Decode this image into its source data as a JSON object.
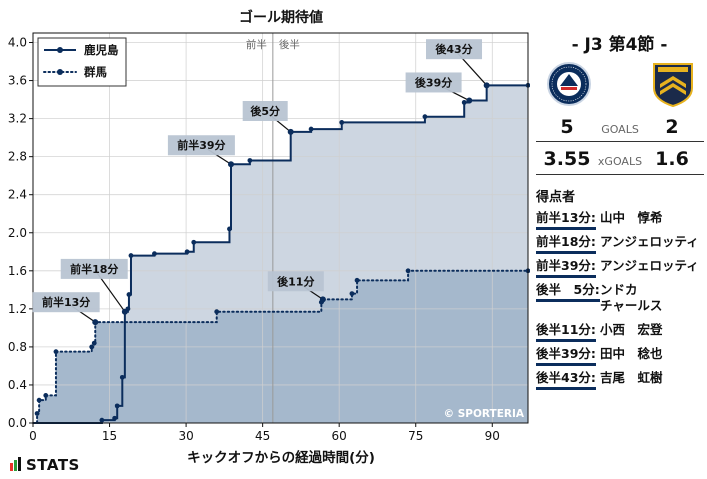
{
  "chart_data": {
    "type": "line",
    "title": "ゴール期待値",
    "xlabel": "キックオフからの経過時間(分)",
    "ylabel": "",
    "xlim": [
      0,
      97
    ],
    "ylim": [
      0,
      4.1
    ],
    "xticks": [
      0,
      15,
      30,
      45,
      60,
      75,
      90
    ],
    "yticks": [
      0.0,
      0.4,
      0.8,
      1.2,
      1.6,
      2.0,
      2.4,
      2.8,
      3.2,
      3.6,
      4.0
    ],
    "grid": true,
    "legend": "top-left",
    "halftime_minute": 47,
    "halftime_labels": [
      "前半",
      "後半"
    ],
    "watermark": "© SPORTERIA",
    "series": [
      {
        "name": "鹿児島",
        "color": "#0b2d5c",
        "fill": "#cdd6e1",
        "style": "solid",
        "points": [
          [
            0,
            0
          ],
          [
            13.5,
            0.03
          ],
          [
            16,
            0.05
          ],
          [
            16.5,
            0.18
          ],
          [
            17.5,
            0.48
          ],
          [
            18,
            1.17
          ],
          [
            18.6,
            1.2
          ],
          [
            18.8,
            1.35
          ],
          [
            19.2,
            1.76
          ],
          [
            23.8,
            1.78
          ],
          [
            30.2,
            1.8
          ],
          [
            31.5,
            1.9
          ],
          [
            38.5,
            2.04
          ],
          [
            38.8,
            2.72
          ],
          [
            42.5,
            2.76
          ],
          [
            50.5,
            3.06
          ],
          [
            54.5,
            3.09
          ],
          [
            60.5,
            3.16
          ],
          [
            76.8,
            3.22
          ],
          [
            84.5,
            3.37
          ],
          [
            85.5,
            3.39
          ],
          [
            88.9,
            3.55
          ],
          [
            97,
            3.55
          ]
        ],
        "shots": [
          [
            13.5,
            0.03
          ],
          [
            16,
            0.05
          ],
          [
            16.5,
            0.18
          ],
          [
            17.5,
            0.48
          ],
          [
            18,
            1.17
          ],
          [
            18.6,
            1.2
          ],
          [
            18.8,
            1.35
          ],
          [
            19.2,
            1.76
          ],
          [
            23.8,
            1.78
          ],
          [
            30.2,
            1.8
          ],
          [
            31.5,
            1.9
          ],
          [
            38.5,
            2.04
          ],
          [
            38.8,
            2.72
          ],
          [
            42.5,
            2.76
          ],
          [
            50.5,
            3.06
          ],
          [
            54.5,
            3.09
          ],
          [
            60.5,
            3.16
          ],
          [
            76.8,
            3.22
          ],
          [
            84.5,
            3.37
          ],
          [
            85.5,
            3.39
          ],
          [
            88.9,
            3.55
          ],
          [
            97,
            3.55
          ]
        ],
        "goals": [
          [
            18,
            1.17
          ],
          [
            38.8,
            2.72
          ],
          [
            50.5,
            3.06
          ],
          [
            85.5,
            3.39
          ],
          [
            88.9,
            3.55
          ]
        ]
      },
      {
        "name": "群馬",
        "color": "#0b2d5c",
        "fill": "#a5b8cc",
        "style": "dotted",
        "points": [
          [
            0,
            0
          ],
          [
            0.8,
            0.1
          ],
          [
            1.2,
            0.24
          ],
          [
            2.5,
            0.29
          ],
          [
            4.5,
            0.75
          ],
          [
            11.5,
            0.8
          ],
          [
            12,
            0.84
          ],
          [
            12.2,
            1.06
          ],
          [
            36,
            1.17
          ],
          [
            56.5,
            1.27
          ],
          [
            56.8,
            1.3
          ],
          [
            62.5,
            1.36
          ],
          [
            63.5,
            1.5
          ],
          [
            73.5,
            1.6
          ],
          [
            97,
            1.6
          ]
        ],
        "shots": [
          [
            0.8,
            0.1
          ],
          [
            1.2,
            0.24
          ],
          [
            2.5,
            0.29
          ],
          [
            4.5,
            0.75
          ],
          [
            11.5,
            0.8
          ],
          [
            12,
            0.84
          ],
          [
            12.2,
            1.06
          ],
          [
            36,
            1.17
          ],
          [
            56.5,
            1.27
          ],
          [
            56.8,
            1.3
          ],
          [
            62.5,
            1.36
          ],
          [
            63.5,
            1.5
          ],
          [
            73.5,
            1.6
          ],
          [
            97,
            1.6
          ]
        ],
        "goals": [
          [
            12.2,
            1.06
          ],
          [
            56.8,
            1.3
          ]
        ]
      }
    ],
    "annotations": [
      {
        "text": "前半13分",
        "x": 12.2,
        "y": 1.06,
        "label_x": 6.5,
        "label_y": 1.27
      },
      {
        "text": "前半18分",
        "x": 18,
        "y": 1.17,
        "label_x": 12,
        "label_y": 1.62
      },
      {
        "text": "前半39分",
        "x": 38.8,
        "y": 2.72,
        "label_x": 33,
        "label_y": 2.92
      },
      {
        "text": "後5分",
        "x": 50.5,
        "y": 3.06,
        "label_x": 45.5,
        "label_y": 3.28
      },
      {
        "text": "後11分",
        "x": 56.8,
        "y": 1.3,
        "label_x": 51.5,
        "label_y": 1.49
      },
      {
        "text": "後39分",
        "x": 85.5,
        "y": 3.39,
        "label_x": 78.5,
        "label_y": 3.58
      },
      {
        "text": "後43分",
        "x": 88.9,
        "y": 3.55,
        "label_x": 82.5,
        "label_y": 3.93
      }
    ]
  },
  "match": {
    "matchday": "- J3 第4節 -",
    "home": {
      "name": "鹿児島",
      "goals": "5",
      "xg": "3.55",
      "crest_text_top": "KAGOSHIMA",
      "crest_text_bottom": "UNITED F.C."
    },
    "away": {
      "name": "群馬",
      "goals": "2",
      "xg": "1.6",
      "crest_text": "GUNMA"
    },
    "goals_label": "GOALS",
    "xgoals_label": "xGOALS",
    "scorers_title": "得点者",
    "scorers": [
      {
        "time": "前半13分:",
        "name": "山中　惇希"
      },
      {
        "time": "前半18分:",
        "name": "アンジェロッティ"
      },
      {
        "time": "前半39分:",
        "name": "アンジェロッティ"
      },
      {
        "time": "後半　5分:",
        "name": "ンドカ\nチャールス"
      },
      {
        "time": "後半11分:",
        "name": "小西　宏登"
      },
      {
        "time": "後半39分:",
        "name": "田中　稔也"
      },
      {
        "time": "後半43分:",
        "name": "吉尾　虹樹"
      }
    ]
  },
  "branding": {
    "logo": "STATS",
    "logo_bar_colors": [
      "#e8352b",
      "#2a9d3a",
      "#111111"
    ]
  }
}
